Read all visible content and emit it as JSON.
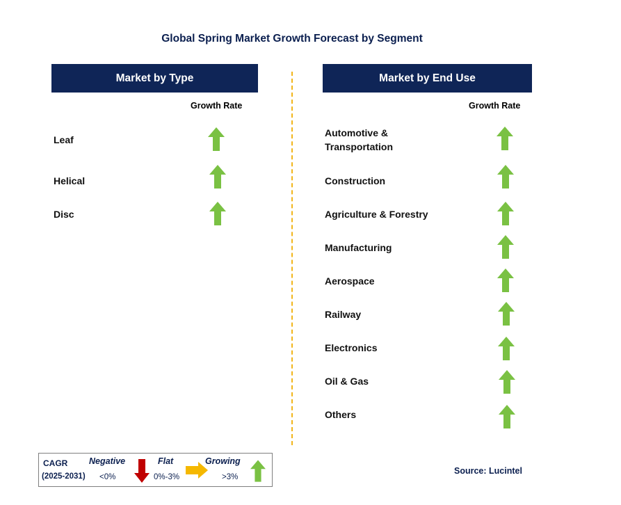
{
  "title": "Global Spring Market Growth Forecast by Segment",
  "left_panel": {
    "header": "Market by Type",
    "column_label": "Growth Rate",
    "rows": [
      {
        "label": "Leaf",
        "trend": "growing"
      },
      {
        "label": "Helical",
        "trend": "growing"
      },
      {
        "label": "Disc",
        "trend": "growing"
      }
    ]
  },
  "right_panel": {
    "header": "Market by End Use",
    "column_label": "Growth Rate",
    "rows": [
      {
        "label_line1": "Automotive &",
        "label_line2": "Transportation",
        "trend": "growing"
      },
      {
        "label_line1": "Construction",
        "trend": "growing"
      },
      {
        "label_line1": "Agriculture & Forestry",
        "trend": "growing"
      },
      {
        "label_line1": "Manufacturing",
        "trend": "growing"
      },
      {
        "label_line1": "Aerospace",
        "trend": "growing"
      },
      {
        "label_line1": "Railway",
        "trend": "growing"
      },
      {
        "label_line1": "Electronics",
        "trend": "growing"
      },
      {
        "label_line1": "Oil & Gas",
        "trend": "growing"
      },
      {
        "label_line1": "Others",
        "trend": "growing"
      }
    ]
  },
  "legend": {
    "cagr_label": "CAGR",
    "period": "(2025-2031)",
    "negative_label": "Negative",
    "negative_range": "<0%",
    "flat_label": "Flat",
    "flat_range": "0%-3%",
    "growing_label": "Growing",
    "growing_range": ">3%"
  },
  "source": "Source: Lucintel",
  "colors": {
    "header_bg": "#0f2557",
    "divider": "#f2b51a",
    "growing_arrow": "#7ac143",
    "negative_arrow": "#c00000",
    "flat_arrow": "#f5b800"
  }
}
